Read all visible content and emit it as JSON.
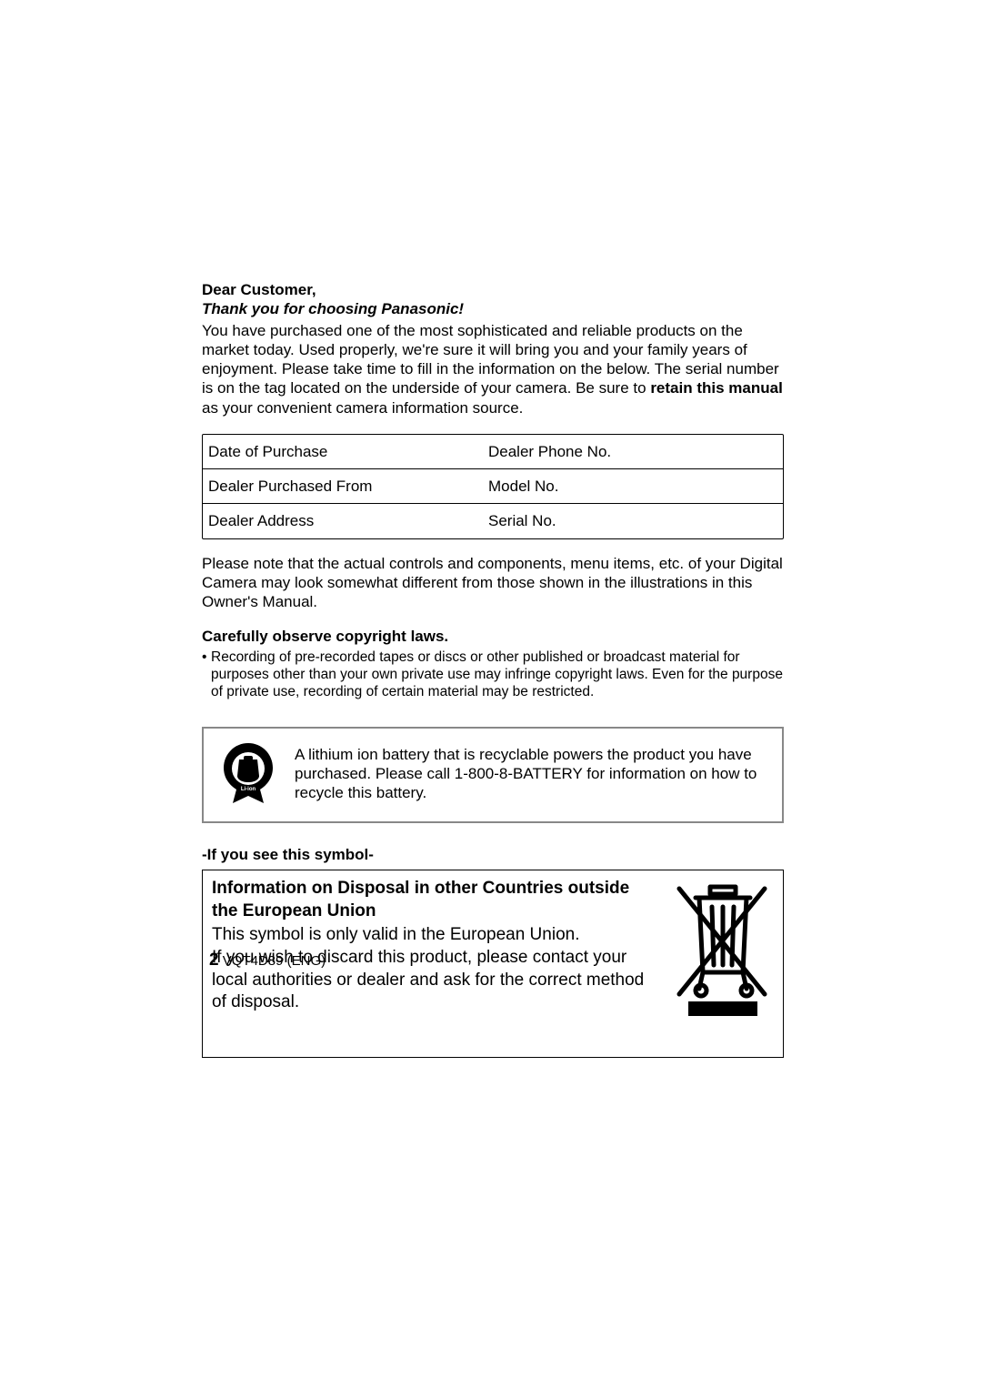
{
  "greeting": "Dear Customer,",
  "thanks": "Thank you for choosing Panasonic!",
  "intro_pre": "You have purchased one of the most sophisticated and reliable products on the market today. Used properly, we're sure it will bring you and your family years of enjoyment. Please take time to fill in the information on the below. The serial number is on the tag located on the underside of your camera. Be sure to ",
  "intro_bold": "retain this manual",
  "intro_post": " as your convenient camera information source.",
  "table": {
    "rows": [
      {
        "left": "Date of Purchase",
        "right": "Dealer Phone No."
      },
      {
        "left": "Dealer Purchased From",
        "right": "Model No."
      },
      {
        "left": "Dealer Address",
        "right": "Serial No."
      }
    ]
  },
  "note": "Please note that the actual controls and components, menu items, etc. of your Digital Camera may look somewhat different from those shown in the illustrations in this Owner's Manual.",
  "copyright_heading": "Carefully observe copyright laws.",
  "copyright_bullet": "Recording of pre-recorded tapes or discs or other published or broadcast material for purposes other than your own private use may infringe copyright laws. Even for the purpose of private use, recording of certain material may be restricted.",
  "recycle_text": "A lithium ion battery that is recyclable powers the product you have purchased. Please call 1-800-8-BATTERY for information on how to recycle this battery.",
  "symbol_heading": "-If you see this symbol-",
  "disposal_title": "Information on Disposal in other Countries outside the European Union",
  "disposal_body": "This symbol is only valid in the European Union.\nIf you wish to discard this product, please contact your local authorities or dealer and ask for the correct method of disposal.",
  "footer": {
    "pagenum": "2",
    "doc": "VQT4D89 (ENG)"
  },
  "colors": {
    "text": "#000000",
    "box_border_gray": "#888888",
    "background": "#ffffff"
  }
}
